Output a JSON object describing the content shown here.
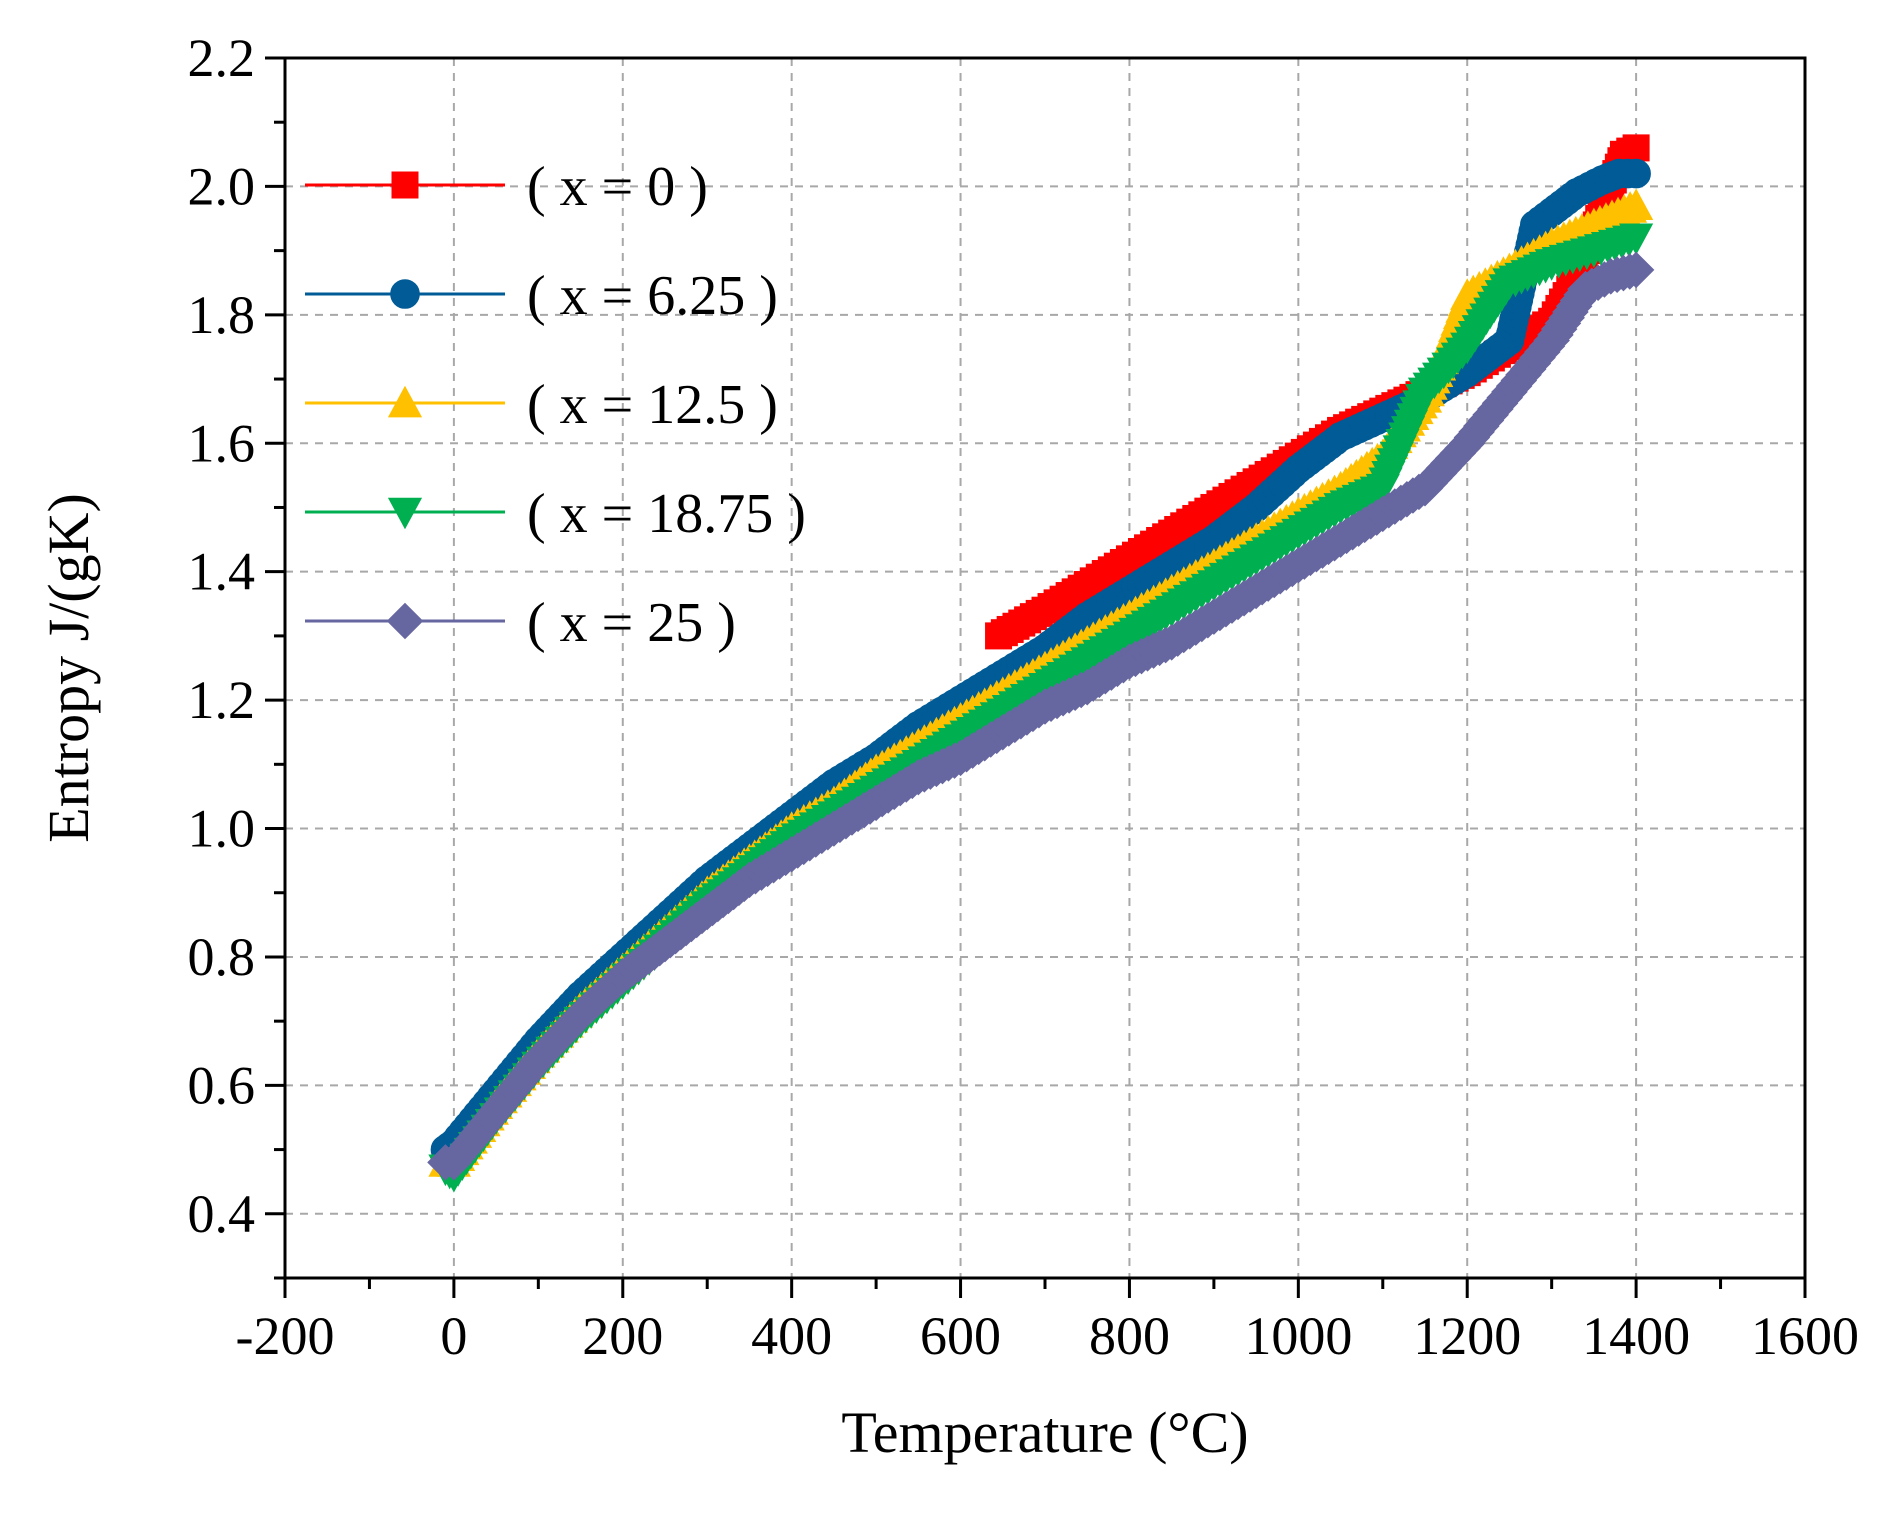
{
  "chart_data": {
    "type": "line",
    "title": "",
    "xlabel": "Temperature (°C)",
    "ylabel": "Entropy J/(gK)",
    "xlim": [
      -200,
      1600
    ],
    "ylim": [
      0.3,
      2.2
    ],
    "xticks": [
      -200,
      0,
      200,
      400,
      600,
      800,
      1000,
      1200,
      1400,
      1600
    ],
    "xtick_labels": [
      "-200",
      "0",
      "200",
      "400",
      "600",
      "800",
      "1000",
      "1200",
      "1400",
      "1600"
    ],
    "yticks": [
      0.4,
      0.6,
      0.8,
      1.0,
      1.2,
      1.4,
      1.6,
      1.8,
      2.0,
      2.2
    ],
    "ytick_labels": [
      "0.4",
      "0.6",
      "0.8",
      "1.0",
      "1.2",
      "1.4",
      "1.6",
      "1.8",
      "2.0",
      "2.2"
    ],
    "grid": true,
    "legend_position": "top-left",
    "series": [
      {
        "name": "( x = 0 )",
        "color": "#ff0000",
        "marker": "square",
        "x": [
          645,
          700,
          750,
          800,
          850,
          900,
          950,
          1000,
          1050,
          1100,
          1150,
          1200,
          1250,
          1300,
          1330,
          1350,
          1370,
          1385,
          1400
        ],
        "y": [
          1.3,
          1.34,
          1.38,
          1.42,
          1.46,
          1.5,
          1.54,
          1.58,
          1.62,
          1.65,
          1.68,
          1.71,
          1.75,
          1.79,
          1.86,
          1.93,
          2.0,
          2.05,
          2.06
        ]
      },
      {
        "name": "( x = 6.25 )",
        "color": "#005b96",
        "marker": "circle",
        "x": [
          -10,
          0,
          50,
          100,
          150,
          200,
          250,
          300,
          350,
          400,
          450,
          500,
          550,
          600,
          650,
          700,
          750,
          800,
          850,
          900,
          950,
          1000,
          1050,
          1100,
          1150,
          1200,
          1250,
          1280,
          1300,
          1330,
          1360,
          1380,
          1400
        ],
        "y": [
          0.5,
          0.51,
          0.59,
          0.67,
          0.74,
          0.8,
          0.86,
          0.92,
          0.97,
          1.02,
          1.07,
          1.11,
          1.16,
          1.2,
          1.24,
          1.28,
          1.33,
          1.37,
          1.41,
          1.45,
          1.5,
          1.56,
          1.61,
          1.64,
          1.67,
          1.71,
          1.76,
          1.94,
          1.96,
          1.99,
          2.01,
          2.02,
          2.02
        ]
      },
      {
        "name": "( x = 12.5 )",
        "color": "#ffc000",
        "marker": "triangle-up",
        "x": [
          -10,
          0,
          50,
          100,
          150,
          200,
          250,
          300,
          350,
          400,
          450,
          500,
          550,
          600,
          650,
          700,
          750,
          800,
          850,
          900,
          950,
          1000,
          1050,
          1100,
          1150,
          1180,
          1200,
          1250,
          1300,
          1350,
          1400
        ],
        "y": [
          0.48,
          0.48,
          0.57,
          0.65,
          0.72,
          0.78,
          0.84,
          0.9,
          0.95,
          1.0,
          1.04,
          1.09,
          1.13,
          1.17,
          1.21,
          1.25,
          1.29,
          1.33,
          1.37,
          1.41,
          1.45,
          1.49,
          1.53,
          1.58,
          1.67,
          1.76,
          1.83,
          1.87,
          1.91,
          1.94,
          1.97
        ]
      },
      {
        "name": "( x = 18.75 )",
        "color": "#00b050",
        "marker": "triangle-down",
        "x": [
          -10,
          0,
          50,
          100,
          150,
          200,
          250,
          300,
          350,
          400,
          450,
          500,
          550,
          600,
          650,
          700,
          750,
          800,
          850,
          900,
          950,
          1000,
          1050,
          1100,
          1120,
          1150,
          1200,
          1250,
          1300,
          1350,
          1400
        ],
        "y": [
          0.47,
          0.46,
          0.55,
          0.63,
          0.7,
          0.76,
          0.82,
          0.88,
          0.93,
          0.98,
          1.02,
          1.06,
          1.1,
          1.14,
          1.18,
          1.22,
          1.26,
          1.3,
          1.34,
          1.38,
          1.42,
          1.46,
          1.5,
          1.53,
          1.59,
          1.68,
          1.75,
          1.85,
          1.88,
          1.9,
          1.92
        ]
      },
      {
        "name": "( x = 25 )",
        "color": "#6666a0",
        "marker": "diamond",
        "x": [
          -10,
          0,
          50,
          100,
          150,
          200,
          250,
          300,
          350,
          400,
          450,
          500,
          550,
          600,
          650,
          700,
          750,
          800,
          850,
          900,
          950,
          1000,
          1050,
          1100,
          1150,
          1200,
          1250,
          1300,
          1340,
          1370,
          1400
        ],
        "y": [
          0.48,
          0.48,
          0.56,
          0.64,
          0.71,
          0.77,
          0.82,
          0.87,
          0.92,
          0.96,
          1.0,
          1.04,
          1.08,
          1.11,
          1.15,
          1.19,
          1.22,
          1.26,
          1.29,
          1.33,
          1.37,
          1.41,
          1.45,
          1.49,
          1.53,
          1.6,
          1.68,
          1.76,
          1.84,
          1.86,
          1.87
        ]
      }
    ]
  }
}
